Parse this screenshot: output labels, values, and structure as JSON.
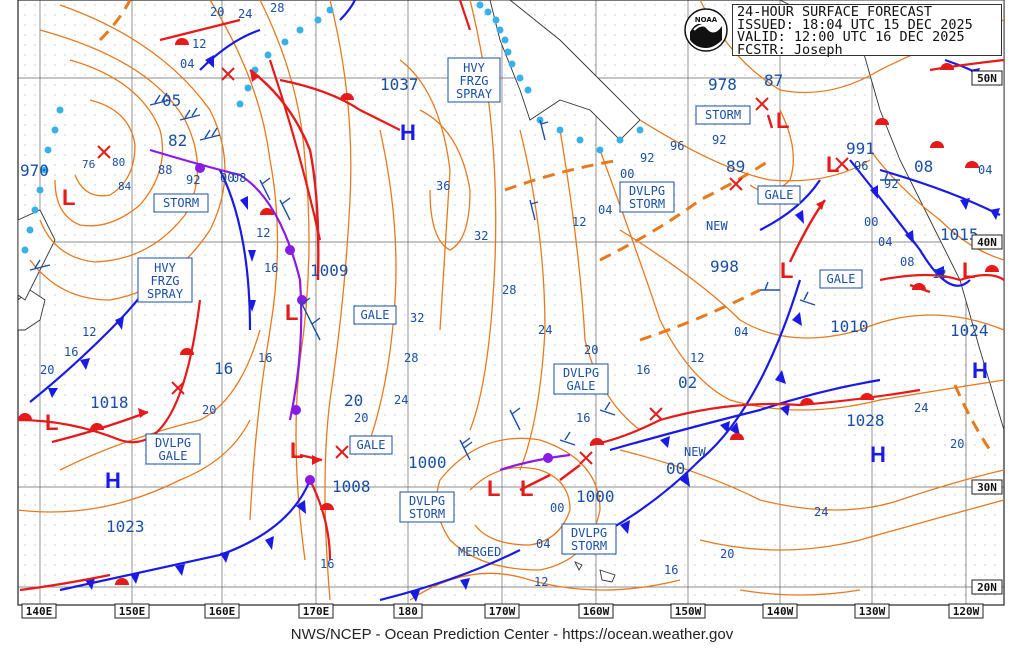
{
  "header": {
    "line1": "24-HOUR SURFACE FORECAST",
    "line2": "ISSUED: 18:04 UTC 15 DEC 2025",
    "line3": "VALID:  12:00 UTC 16 DEC 2025",
    "line4": "FCSTR:  Joseph"
  },
  "logo": {
    "icon": "noaa-logo-icon",
    "text": "NOAA"
  },
  "footer": {
    "text": "NWS/NCEP - Ocean Prediction Center - https://ocean.weather.gov"
  },
  "longitude_labels": [
    "140E",
    "150E",
    "160E",
    "170E",
    "180",
    "170W",
    "160W",
    "150W",
    "140W",
    "130W",
    "120W"
  ],
  "latitude_labels": [
    "50N",
    "40N",
    "30N",
    "20N"
  ],
  "centers": [
    {
      "type": "H",
      "pressure": "1037"
    },
    {
      "type": "H",
      "pressure": "1018"
    },
    {
      "type": "H",
      "pressure": "1023"
    },
    {
      "type": "H",
      "pressure": "1028"
    },
    {
      "type": "H",
      "pressure": "1024"
    },
    {
      "type": "L",
      "pressure": "970"
    },
    {
      "type": "L",
      "pressure": "1009"
    },
    {
      "type": "L",
      "pressure": "1008"
    },
    {
      "type": "L",
      "pressure": "1000"
    },
    {
      "type": "L",
      "pressure": "1000"
    },
    {
      "type": "L",
      "pressure": "998"
    },
    {
      "type": "L",
      "pressure": "991"
    },
    {
      "type": "L",
      "pressure": "1015"
    },
    {
      "type": "L",
      "pressure": "1010"
    },
    {
      "type": "L",
      "pressure": "978"
    }
  ],
  "warnings": [
    "HVY FRZG SPRAY",
    "STORM",
    "HVY FRZG SPRAY",
    "GALE",
    "GALE",
    "DVLPG GALE",
    "DVLPG GALE",
    "DVLPG STORM",
    "DVLPG STORM",
    "DVLPG STORM",
    "STORM",
    "GALE",
    "GALE",
    "NEW",
    "NEW",
    "MERGED"
  ],
  "isobar_labels": [
    "05",
    "82",
    "88",
    "92",
    "00",
    "04",
    "08",
    "12",
    "16",
    "20",
    "24",
    "28",
    "32",
    "36",
    "12",
    "16",
    "20",
    "24",
    "28",
    "32",
    "16",
    "20",
    "12",
    "08",
    "04",
    "00",
    "02",
    "16",
    "20",
    "24",
    "08",
    "12",
    "16",
    "20",
    "24",
    "96",
    "92",
    "89",
    "87",
    "96",
    "00",
    "04",
    "08",
    "12",
    "16",
    "08",
    "20",
    "24",
    "76",
    "80",
    "84",
    "08",
    "12",
    "16",
    "20",
    "24",
    "28",
    "24",
    "04"
  ],
  "colors": {
    "isobar": "#e87a1e",
    "cold_front": "#1a1ae6",
    "warm_front": "#e61a1a",
    "occluded": "#8a1ae6",
    "ice": "#38b0e8",
    "grid": "#555555",
    "label_text": "#1a4fa6"
  }
}
